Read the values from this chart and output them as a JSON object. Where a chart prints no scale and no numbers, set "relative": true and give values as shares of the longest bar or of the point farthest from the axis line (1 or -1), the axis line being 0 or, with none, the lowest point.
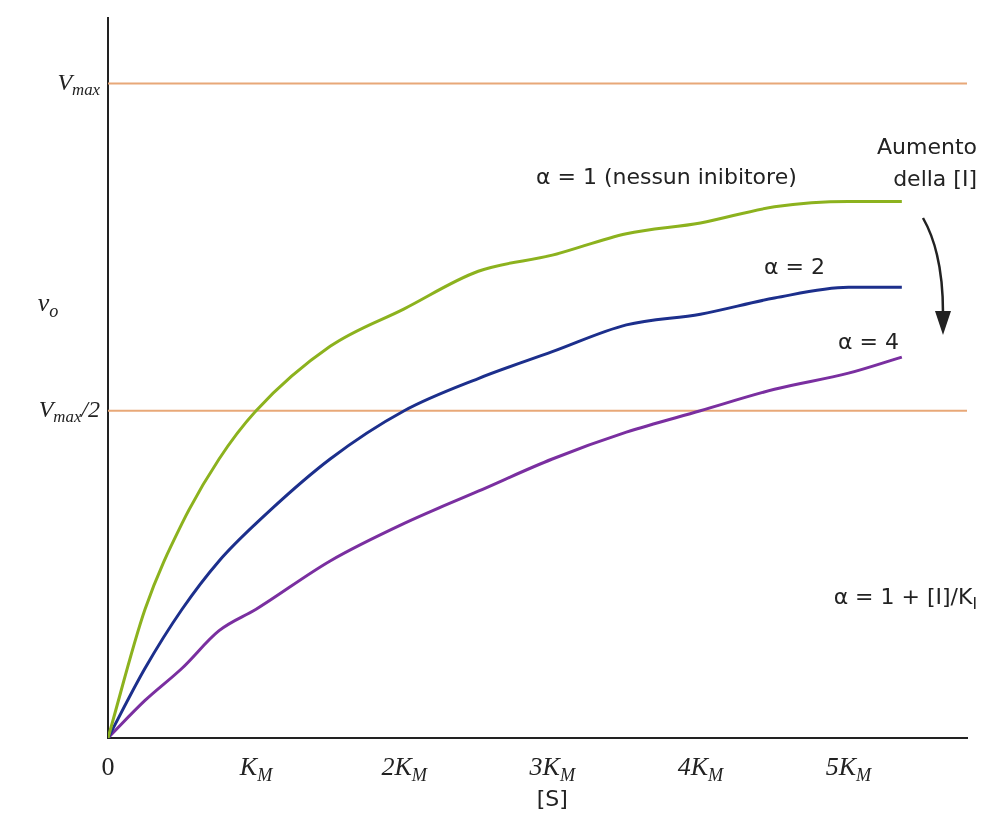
{
  "chart_data": {
    "type": "line",
    "relative": true,
    "xlabel": "[S]",
    "ylabel": "v$_{o}$",
    "x": [
      0,
      0.25,
      0.5,
      0.75,
      1,
      1.5,
      2,
      2.5,
      3,
      3.5,
      4,
      4.5,
      5,
      5.36
    ],
    "series": [
      {
        "name": "α = 1 (nessun inibitore)",
        "color": "#8cb21e",
        "values": [
          0,
          0.24,
          0.4,
          0.52,
          0.61,
          0.73,
          0.8,
          0.87,
          0.9,
          0.94,
          0.96,
          0.99,
          1,
          1
        ]
      },
      {
        "name": "α = 2",
        "color": "#1c2f8c",
        "values": [
          0,
          0.13,
          0.24,
          0.33,
          0.4,
          0.52,
          0.61,
          0.67,
          0.72,
          0.77,
          0.79,
          0.82,
          0.84,
          0.84
        ]
      },
      {
        "name": "α = 4",
        "color": "#7a2fa0",
        "values": [
          0,
          0.07,
          0.13,
          0.2,
          0.24,
          0.33,
          0.4,
          0.46,
          0.52,
          0.57,
          0.61,
          0.65,
          0.68,
          0.71
        ]
      }
    ],
    "xlim": [
      0,
      5.8
    ],
    "xticks": [
      0,
      {
        "value": 1,
        "label": "K$_{M}$"
      },
      {
        "value": 2,
        "label": "2K$_{M}$"
      },
      {
        "value": 3,
        "label": "3K$_{M}$"
      },
      {
        "value": 4,
        "label": "4K$_{M}$"
      },
      {
        "value": 5,
        "label": "5K$_{M}$"
      }
    ],
    "ref_lines": [
      {
        "axis": "y",
        "value": 1.22,
        "label": "V$_{max}$",
        "color": "#e8a878"
      },
      {
        "axis": "y",
        "value": 0.61,
        "label": "V$_{max}$/2",
        "color": "#e8a878"
      }
    ],
    "annotations": [
      "Aumento della [I]",
      "α = 1 + [I]/K$_{I}$"
    ],
    "grid": false,
    "legend": false,
    "marker": "none",
    "line_style": "solid"
  }
}
